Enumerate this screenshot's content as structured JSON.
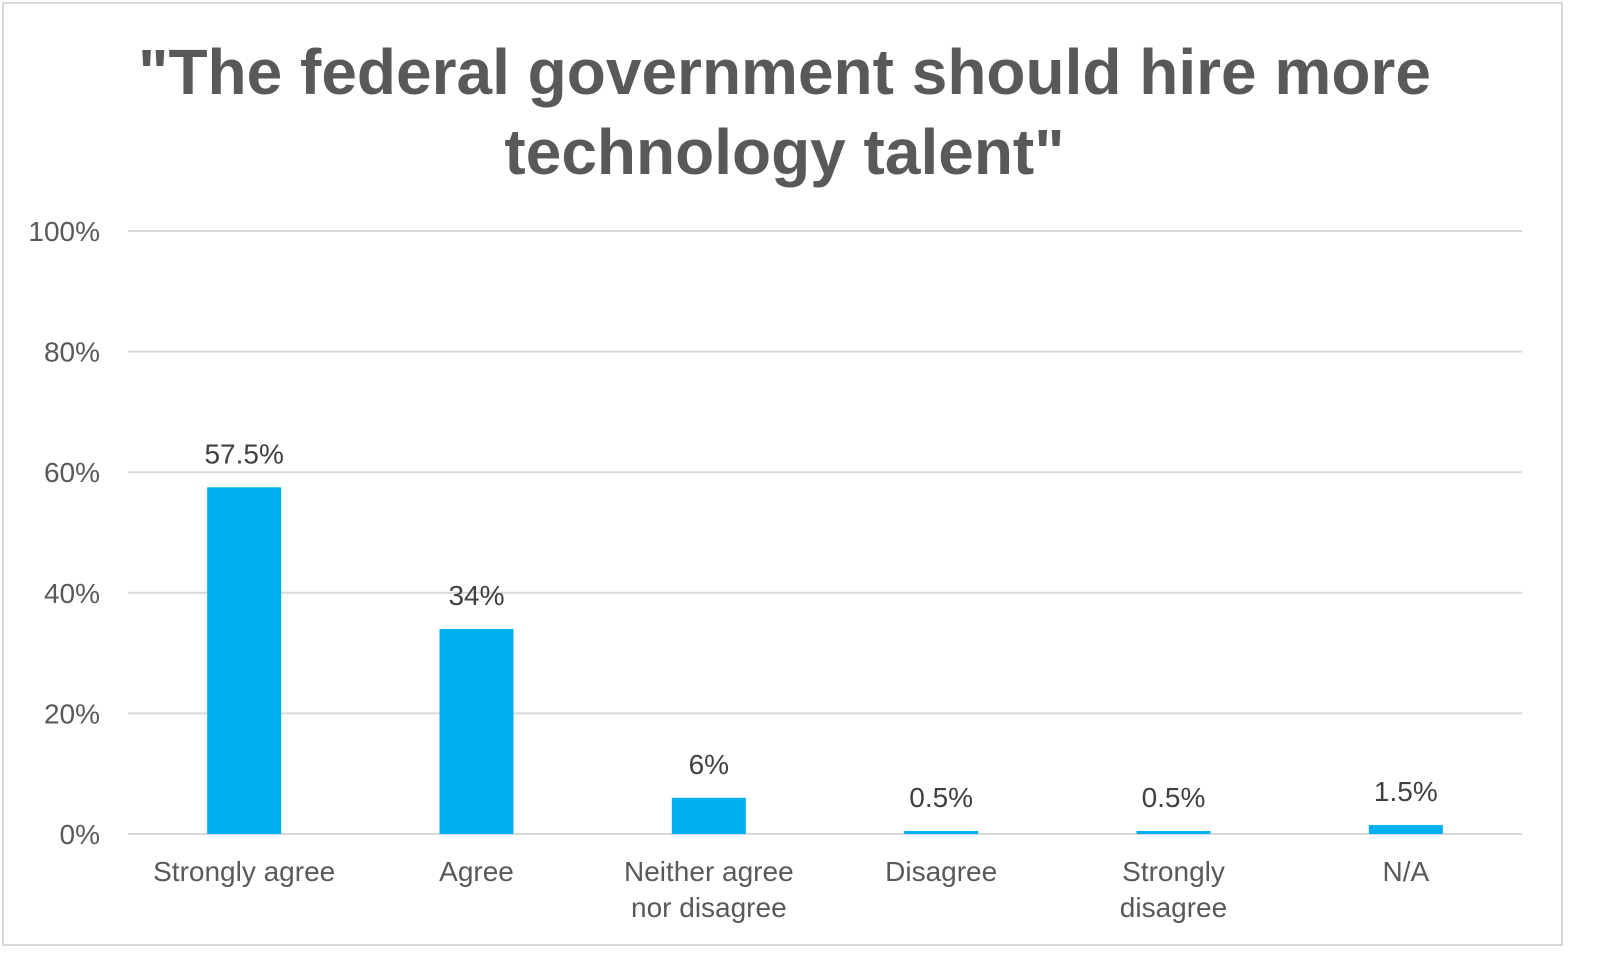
{
  "chart_data": {
    "type": "bar",
    "title": "\"The federal government should hire more technology talent\"",
    "categories": [
      [
        "Strongly agree"
      ],
      [
        "Agree"
      ],
      [
        "Neither agree",
        "nor disagree"
      ],
      [
        "Disagree"
      ],
      [
        "Strongly",
        "disagree"
      ],
      [
        "N/A"
      ]
    ],
    "values": [
      57.5,
      34,
      6,
      0.5,
      0.5,
      1.5
    ],
    "data_labels": [
      "57.5%",
      "34%",
      "6%",
      "0.5%",
      "0.5%",
      "1.5%"
    ],
    "xlabel": "",
    "ylabel": "",
    "ylim": [
      0,
      100
    ],
    "y_ticks": [
      "0%",
      "20%",
      "40%",
      "60%",
      "80%",
      "100%"
    ],
    "grid": true,
    "legend": "none",
    "colors": {
      "bar": "#00b0f0",
      "grid": "#d9d9d9",
      "text": "#595959",
      "label": "#404040"
    }
  }
}
